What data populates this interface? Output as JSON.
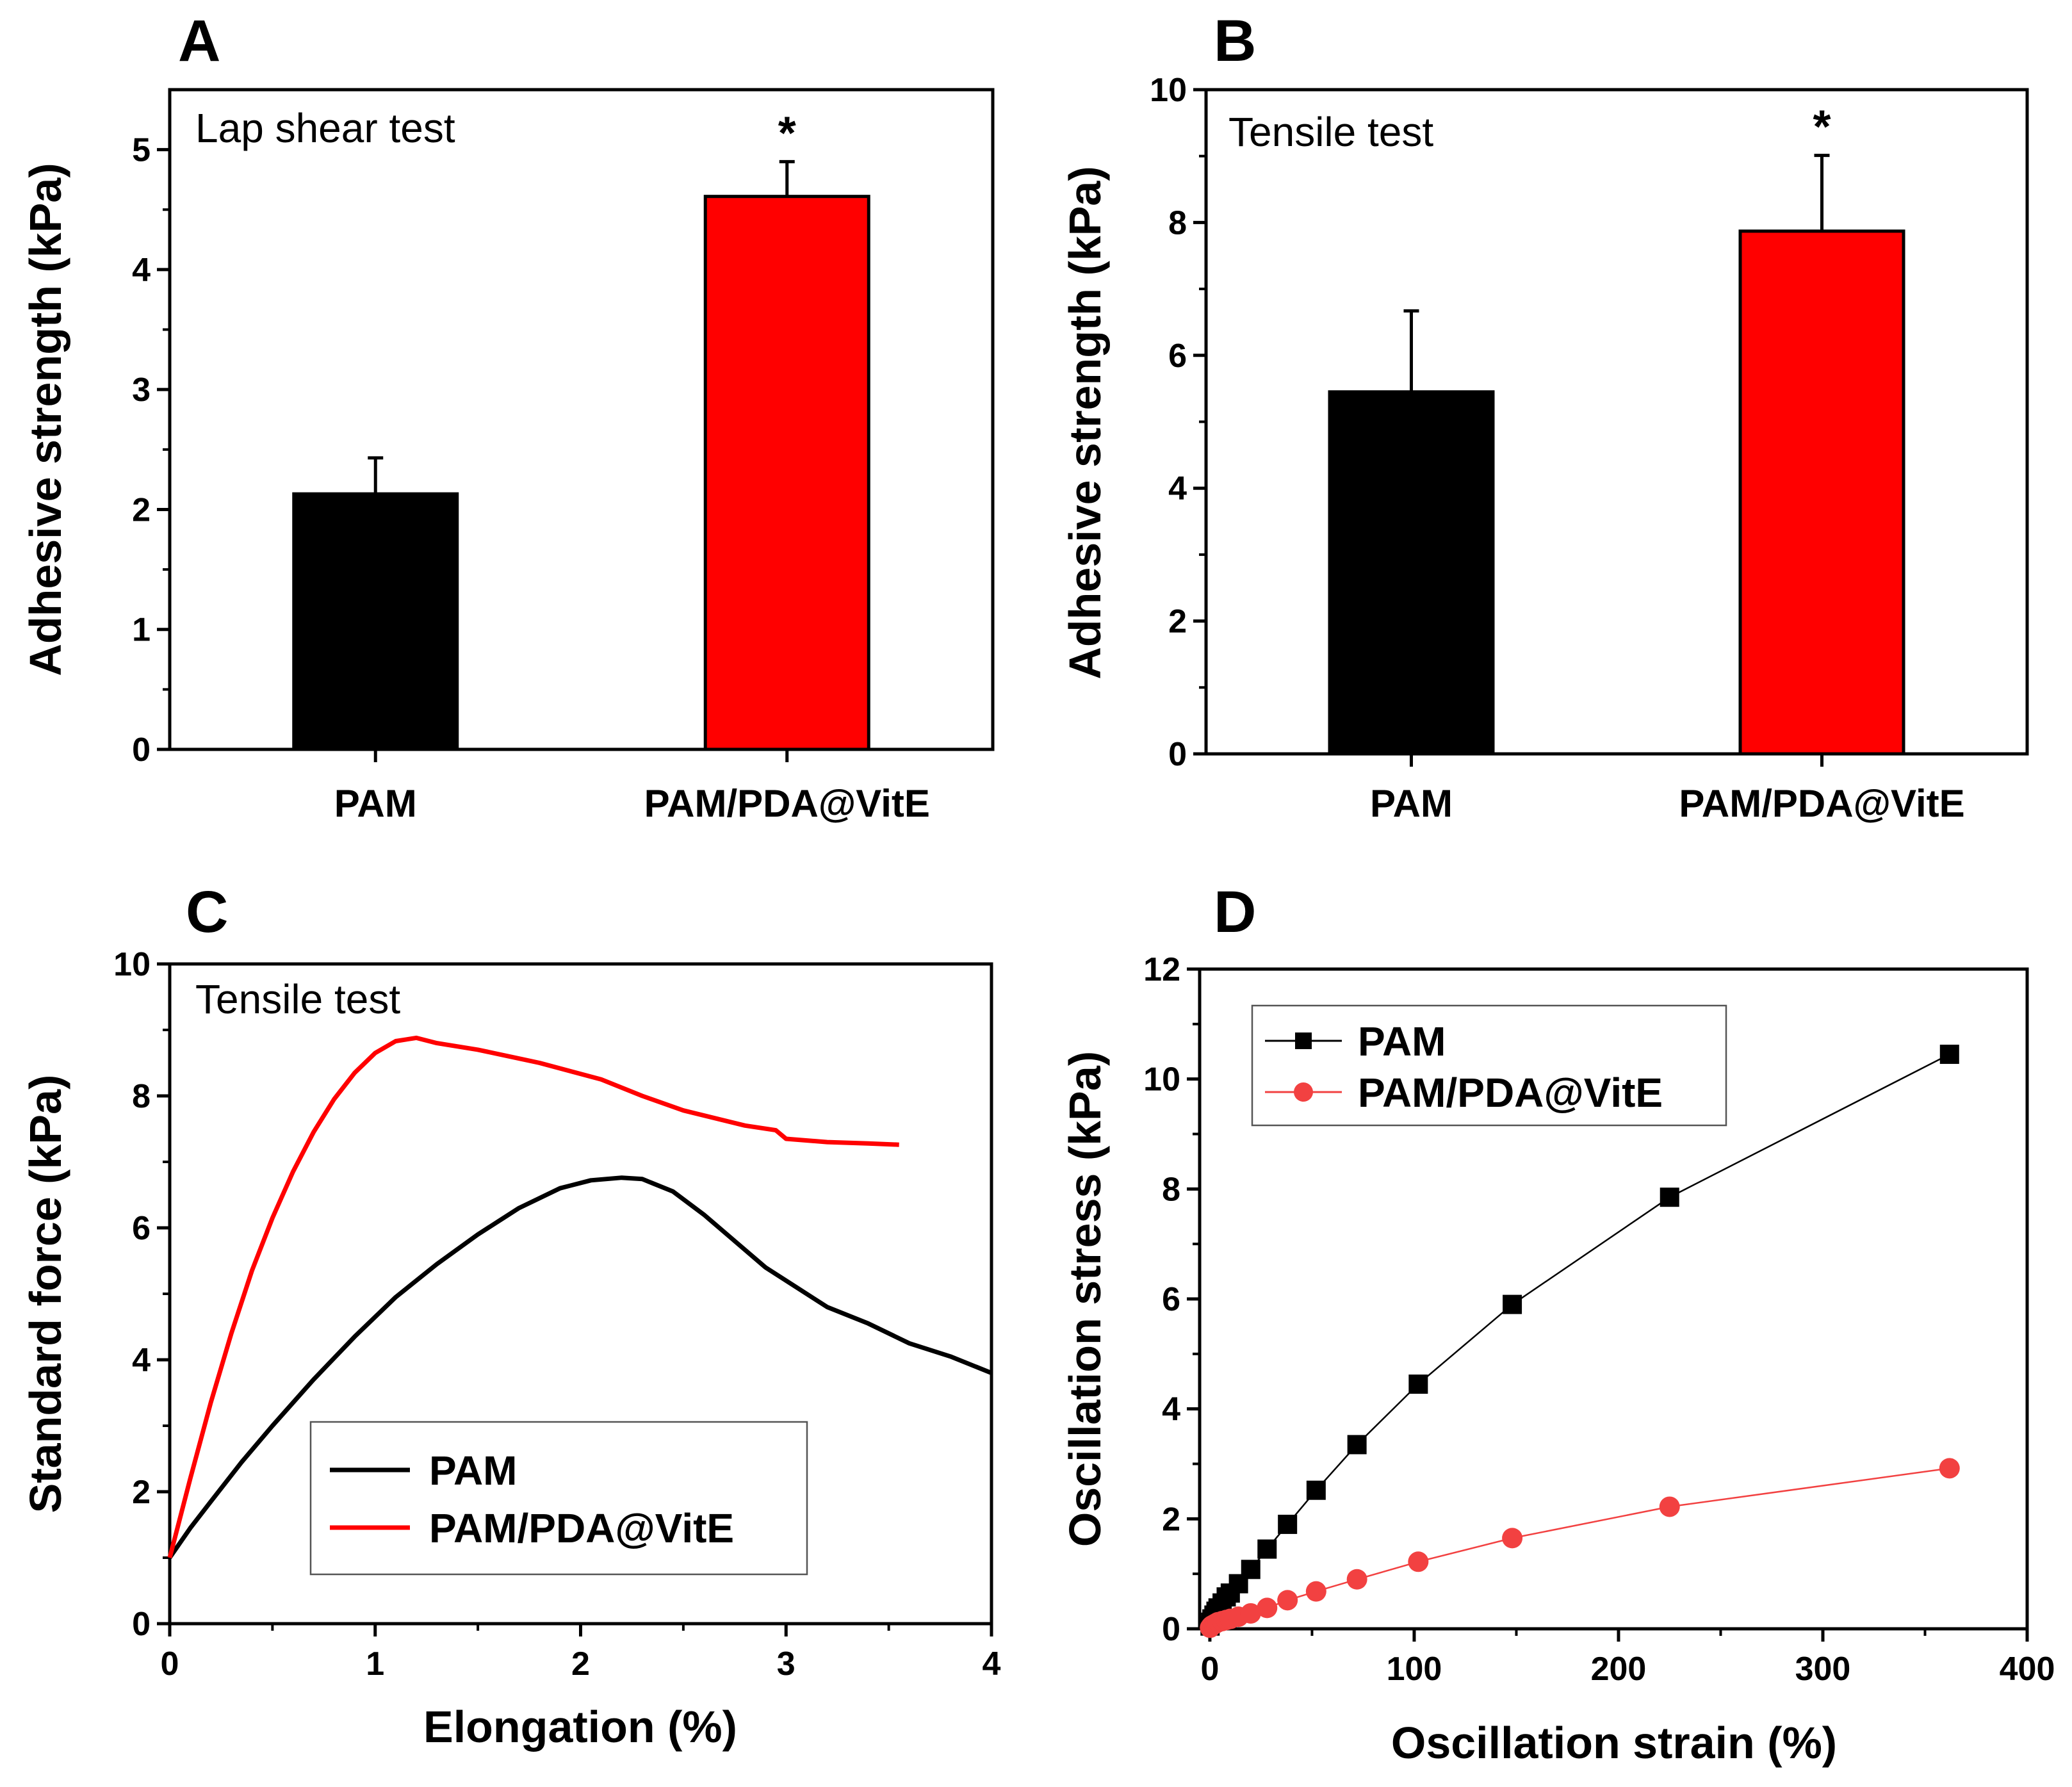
{
  "colors": {
    "pam": "#000000",
    "pam_pda_vite": "#ff0000",
    "pam_pda_vite_marker": "#f24141"
  },
  "chart_data": [
    {
      "panel": "A",
      "type": "bar",
      "annotation": "Lap shear test",
      "categories": [
        "PAM",
        "PAM/PDA@VitE"
      ],
      "values": [
        2.13,
        4.61
      ],
      "errors": [
        0.3,
        0.29
      ],
      "significance": [
        "",
        "*"
      ],
      "xlabel": "",
      "ylabel": "Adhesive strength (kPa)",
      "ylim": [
        0,
        5.5
      ],
      "yticks": [
        0,
        1,
        2,
        3,
        4,
        5
      ],
      "ytick_labels": [
        "0",
        "1",
        "2",
        "3",
        "4",
        "5"
      ]
    },
    {
      "panel": "B",
      "type": "bar",
      "annotation": "Tensile test",
      "categories": [
        "PAM",
        "PAM/PDA@VitE"
      ],
      "values": [
        5.45,
        7.87
      ],
      "errors": [
        1.22,
        1.14
      ],
      "significance": [
        "",
        "*"
      ],
      "xlabel": "",
      "ylabel": "Adhesive strength (kPa)",
      "ylim": [
        0,
        10
      ],
      "yticks": [
        0,
        2,
        4,
        6,
        8,
        10
      ],
      "ytick_labels": [
        "0",
        "2",
        "4",
        "6",
        "8",
        "10"
      ]
    },
    {
      "panel": "C",
      "type": "line",
      "annotation": "Tensile test",
      "xlabel": "Elongation (%)",
      "ylabel": "Standard force (kPa)",
      "xlim": [
        0,
        4
      ],
      "ylim": [
        0,
        10
      ],
      "xticks": [
        0,
        1,
        2,
        3,
        4
      ],
      "xtick_labels": [
        "0",
        "1",
        "2",
        "3",
        "4"
      ],
      "yticks": [
        0,
        2,
        4,
        6,
        8,
        10
      ],
      "ytick_labels": [
        "0",
        "2",
        "4",
        "6",
        "8",
        "10"
      ],
      "legend_position": "bottom-right",
      "series": [
        {
          "name": "PAM",
          "x": [
            0,
            0.1,
            0.2,
            0.35,
            0.5,
            0.7,
            0.9,
            1.1,
            1.3,
            1.5,
            1.7,
            1.9,
            2.05,
            2.2,
            2.3,
            2.45,
            2.6,
            2.75,
            2.9,
            3.05,
            3.2,
            3.4,
            3.6,
            3.8,
            4.0
          ],
          "y": [
            1.0,
            1.45,
            1.85,
            2.45,
            3.0,
            3.7,
            4.35,
            4.95,
            5.45,
            5.9,
            6.3,
            6.6,
            6.72,
            6.76,
            6.74,
            6.55,
            6.2,
            5.8,
            5.4,
            5.1,
            4.8,
            4.55,
            4.25,
            4.05,
            3.8
          ]
        },
        {
          "name": "PAM/PDA@VitE",
          "x": [
            0,
            0.1,
            0.2,
            0.3,
            0.4,
            0.5,
            0.6,
            0.7,
            0.8,
            0.9,
            1.0,
            1.1,
            1.2,
            1.3,
            1.5,
            1.8,
            2.1,
            2.3,
            2.5,
            2.8,
            2.95,
            3.0,
            3.2,
            3.4,
            3.55
          ],
          "y": [
            1.0,
            2.2,
            3.35,
            4.4,
            5.35,
            6.15,
            6.85,
            7.45,
            7.95,
            8.35,
            8.65,
            8.83,
            8.88,
            8.8,
            8.7,
            8.5,
            8.25,
            8.0,
            7.78,
            7.55,
            7.48,
            7.35,
            7.3,
            7.28,
            7.26
          ]
        }
      ]
    },
    {
      "panel": "D",
      "type": "scatter",
      "xlabel": "Oscillation strain (%)",
      "ylabel": "Oscillation stress (kPa)",
      "xlim": [
        -5,
        400
      ],
      "ylim": [
        0,
        12
      ],
      "xticks": [
        0,
        100,
        200,
        300,
        400
      ],
      "xtick_labels": [
        "0",
        "100",
        "200",
        "300",
        "400"
      ],
      "yticks": [
        0,
        2,
        4,
        6,
        8,
        10,
        12
      ],
      "ytick_labels": [
        "0",
        "2",
        "4",
        "6",
        "8",
        "10",
        "12"
      ],
      "legend_position": "top-left",
      "series": [
        {
          "name": "PAM",
          "marker": "square",
          "x": [
            0.1,
            0.5,
            1,
            2,
            3,
            4,
            6,
            8,
            10,
            14,
            20,
            28,
            38,
            52,
            72,
            102,
            148,
            225,
            362
          ],
          "y": [
            0.05,
            0.12,
            0.18,
            0.25,
            0.32,
            0.38,
            0.47,
            0.58,
            0.65,
            0.82,
            1.08,
            1.45,
            1.9,
            2.52,
            3.35,
            4.45,
            5.9,
            7.85,
            10.45
          ]
        },
        {
          "name": "PAM/PDA@VitE",
          "marker": "circle",
          "x": [
            0.1,
            0.5,
            1,
            2,
            3,
            4,
            6,
            8,
            10,
            14,
            20,
            28,
            38,
            52,
            72,
            102,
            148,
            225,
            362
          ],
          "y": [
            0.02,
            0.04,
            0.06,
            0.08,
            0.1,
            0.12,
            0.14,
            0.16,
            0.18,
            0.22,
            0.28,
            0.38,
            0.52,
            0.68,
            0.9,
            1.22,
            1.65,
            2.22,
            2.92
          ]
        }
      ]
    }
  ]
}
